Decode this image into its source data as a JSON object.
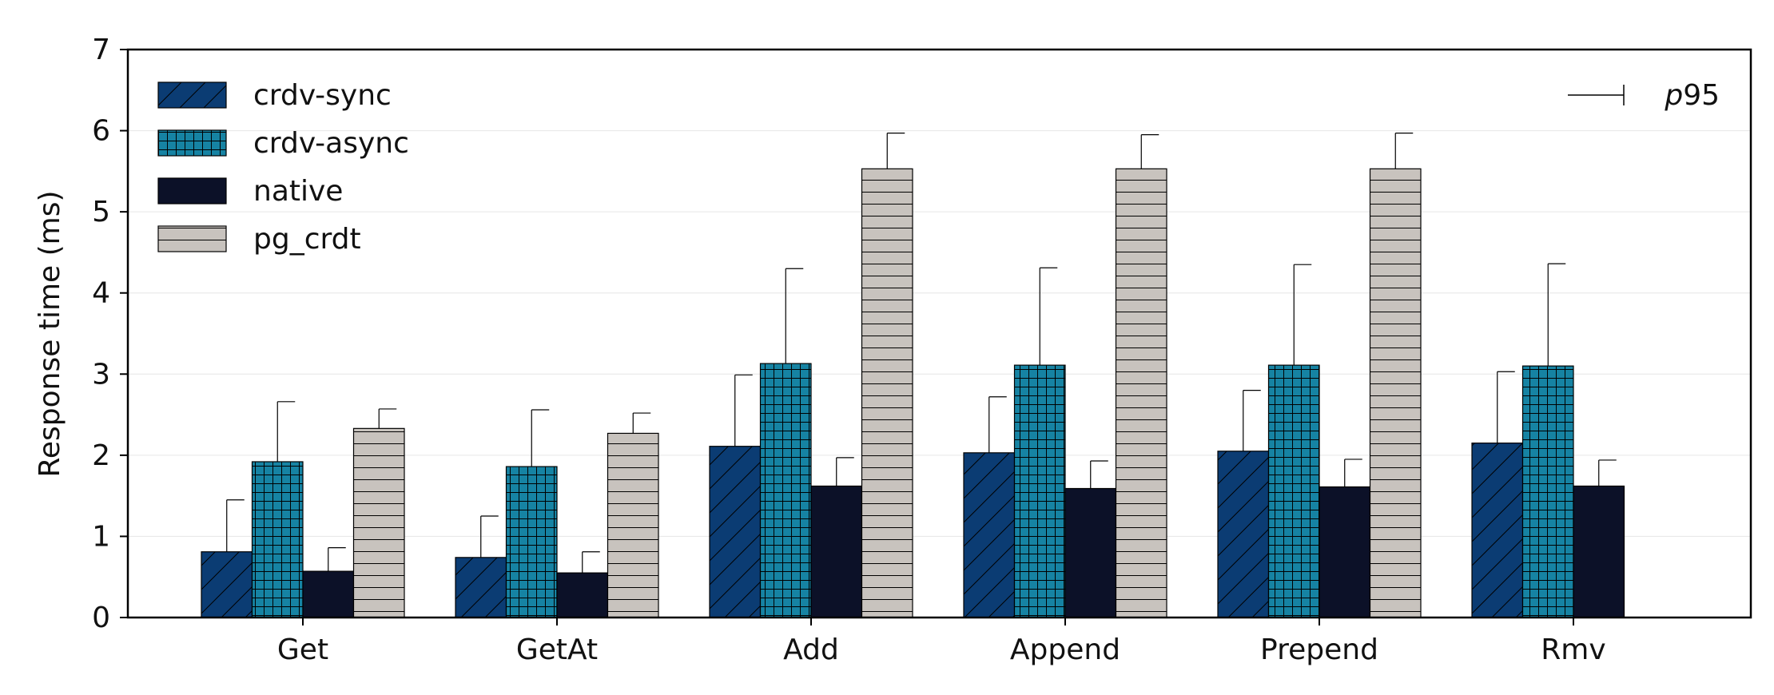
{
  "chart_data": {
    "type": "bar",
    "ylabel": "Response time (ms)",
    "ylim": [
      0,
      7
    ],
    "yticks": [
      0,
      1,
      2,
      3,
      4,
      5,
      6,
      7
    ],
    "grid": "horizontal-light",
    "legend_position": "top-left",
    "categories": [
      "Get",
      "GetAt",
      "Add",
      "Append",
      "Prepend",
      "Rmv"
    ],
    "series": [
      {
        "name": "crdv-sync",
        "color": "#0b3c73",
        "pattern": "diagonal",
        "values": [
          0.81,
          0.74,
          2.11,
          2.03,
          2.05,
          2.15
        ],
        "p95": [
          1.45,
          1.25,
          2.99,
          2.72,
          2.8,
          3.03
        ]
      },
      {
        "name": "crdv-async",
        "color": "#1683a3",
        "pattern": "grid",
        "values": [
          1.92,
          1.86,
          3.13,
          3.11,
          3.11,
          3.1
        ],
        "p95": [
          2.66,
          2.56,
          4.3,
          4.31,
          4.35,
          4.36
        ]
      },
      {
        "name": "native",
        "color": "#0c1128",
        "pattern": "none",
        "values": [
          0.57,
          0.55,
          1.62,
          1.59,
          1.61,
          1.62
        ],
        "p95": [
          0.86,
          0.81,
          1.97,
          1.93,
          1.95,
          1.94
        ]
      },
      {
        "name": "pg_crdt",
        "color": "#c8c3be",
        "pattern": "horizontal",
        "values": [
          2.33,
          2.27,
          5.53,
          5.53,
          5.53,
          null
        ],
        "p95": [
          2.57,
          2.52,
          5.97,
          5.95,
          5.97,
          null
        ]
      }
    ],
    "errorbar_legend": {
      "prefix": "p",
      "suffix": "95"
    }
  }
}
